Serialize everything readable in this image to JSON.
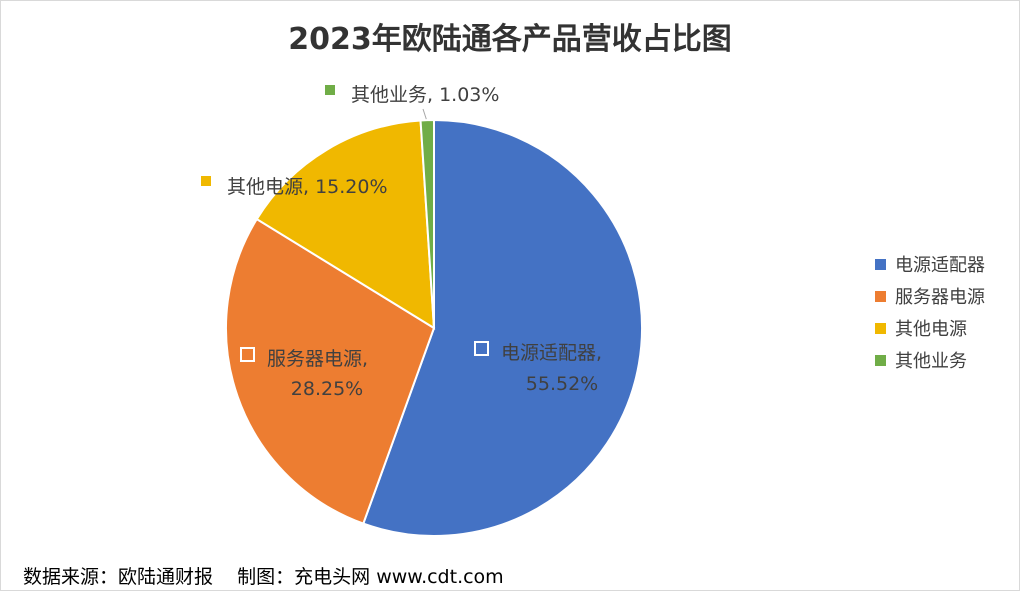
{
  "chart_data": {
    "type": "pie",
    "title": "2023年欧陆通各产品营收占比图",
    "categories": [
      "电源适配器",
      "服务器电源",
      "其他电源",
      "其他业务"
    ],
    "values": [
      55.52,
      28.25,
      15.2,
      1.03
    ],
    "value_labels": [
      "55.52%",
      "28.25%",
      "15.20%",
      "1.03%"
    ],
    "colors": [
      "#4472C4",
      "#ED7D31",
      "#F0B800",
      "#70AD47"
    ],
    "legend": {
      "placement": "right",
      "entries": [
        "电源适配器",
        "服务器电源",
        "其他电源",
        "其他业务"
      ]
    },
    "start_angle": "12 o'clock",
    "direction": "clockwise"
  },
  "source_note": "数据来源：欧陆通财报    制图：充电头网 www.cdt.com"
}
